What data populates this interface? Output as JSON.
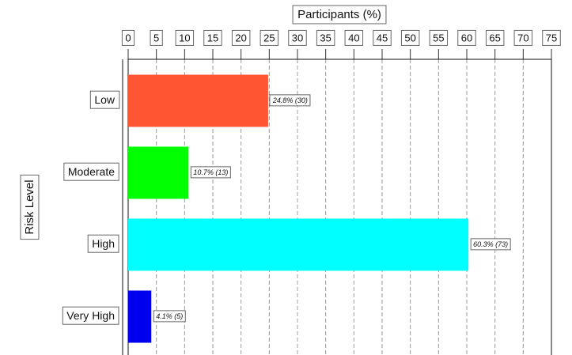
{
  "chart_data": {
    "type": "bar",
    "orientation": "horizontal",
    "xlabel": "Participants (%)",
    "ylabel": "Risk Level",
    "categories": [
      "Low",
      "Moderate",
      "High",
      "Very High"
    ],
    "values": [
      24.8,
      10.7,
      60.3,
      4.1
    ],
    "value_labels": [
      "24.8% (30)",
      "10.7% (13)",
      "60.3% (73)",
      "4.1% (5)"
    ],
    "colors": [
      "#ff5533",
      "#00ff00",
      "#00ffff",
      "#0000ee"
    ],
    "xlim": [
      0,
      75
    ],
    "xticks": [
      0,
      5,
      10,
      15,
      20,
      25,
      30,
      35,
      40,
      45,
      50,
      55,
      60,
      65,
      70,
      75
    ],
    "grid": true
  }
}
